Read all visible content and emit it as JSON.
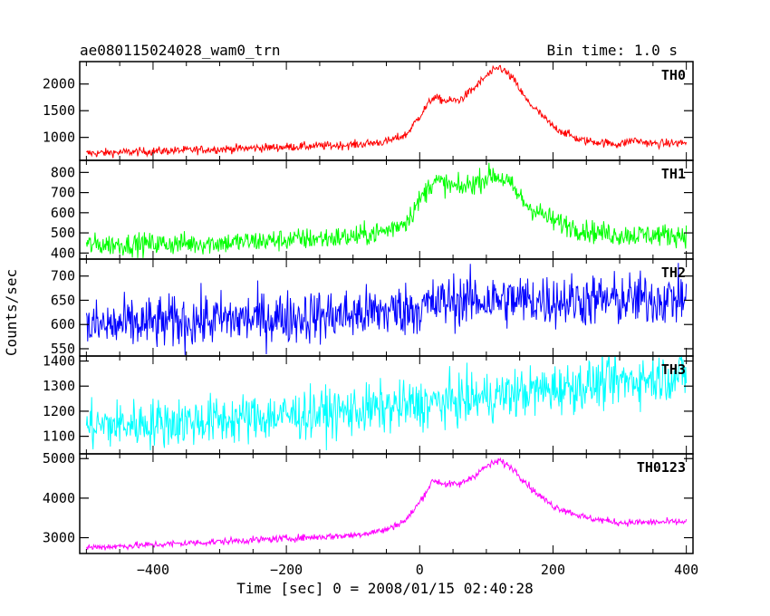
{
  "header": {
    "title": "ae080115024028_wam0_trn",
    "bin_time": "Bin time: 1.0 s"
  },
  "chart_data": {
    "type": "line",
    "ylabel": "Counts/sec",
    "xlabel": "Time [sec] 0 = 2008/01/15 02:40:28",
    "xlim": [
      -510,
      410
    ],
    "x_ticks": [
      -400,
      -200,
      0,
      200,
      400
    ],
    "x_tick_labels": [
      "−400",
      "−200",
      "0",
      "200",
      "400"
    ],
    "grid": false,
    "series": [
      {
        "name": "TH0",
        "color": "#ff0000",
        "ylim": [
          570,
          2420
        ],
        "y_ticks": [
          1000,
          1500,
          2000
        ],
        "noise": 40,
        "points": [
          [
            -500,
            700
          ],
          [
            -400,
            740
          ],
          [
            -300,
            780
          ],
          [
            -200,
            820
          ],
          [
            -100,
            860
          ],
          [
            -50,
            920
          ],
          [
            -20,
            1050
          ],
          [
            0,
            1400
          ],
          [
            20,
            1750
          ],
          [
            40,
            1680
          ],
          [
            60,
            1700
          ],
          [
            80,
            1900
          ],
          [
            100,
            2150
          ],
          [
            120,
            2320
          ],
          [
            140,
            2100
          ],
          [
            160,
            1700
          ],
          [
            200,
            1200
          ],
          [
            240,
            950
          ],
          [
            300,
            870
          ],
          [
            320,
            950
          ],
          [
            350,
            880
          ],
          [
            400,
            900
          ]
        ]
      },
      {
        "name": "TH1",
        "color": "#00ff00",
        "ylim": [
          370,
          860
        ],
        "y_ticks": [
          400,
          500,
          600,
          700,
          800
        ],
        "noise": 28,
        "points": [
          [
            -500,
            440
          ],
          [
            -300,
            450
          ],
          [
            -200,
            465
          ],
          [
            -100,
            480
          ],
          [
            -50,
            510
          ],
          [
            -20,
            560
          ],
          [
            0,
            660
          ],
          [
            20,
            760
          ],
          [
            40,
            740
          ],
          [
            60,
            720
          ],
          [
            90,
            760
          ],
          [
            110,
            790
          ],
          [
            130,
            760
          ],
          [
            160,
            640
          ],
          [
            200,
            560
          ],
          [
            250,
            510
          ],
          [
            300,
            490
          ],
          [
            400,
            490
          ]
        ]
      },
      {
        "name": "TH2",
        "color": "#0000ff",
        "ylim": [
          535,
          735
        ],
        "y_ticks": [
          550,
          600,
          650,
          700
        ],
        "noise": 28,
        "points": [
          [
            -500,
            595
          ],
          [
            -300,
            610
          ],
          [
            -100,
            620
          ],
          [
            0,
            635
          ],
          [
            50,
            650
          ],
          [
            100,
            650
          ],
          [
            200,
            650
          ],
          [
            300,
            650
          ],
          [
            400,
            655
          ]
        ]
      },
      {
        "name": "TH3",
        "color": "#00ffff",
        "ylim": [
          1030,
          1420
        ],
        "y_ticks": [
          1100,
          1200,
          1300,
          1400
        ],
        "noise": 50,
        "points": [
          [
            -500,
            1140
          ],
          [
            -300,
            1165
          ],
          [
            -100,
            1200
          ],
          [
            0,
            1225
          ],
          [
            100,
            1255
          ],
          [
            200,
            1290
          ],
          [
            300,
            1320
          ],
          [
            400,
            1345
          ]
        ]
      },
      {
        "name": "TH0123",
        "color": "#ff00ff",
        "ylim": [
          2600,
          5120
        ],
        "y_ticks": [
          3000,
          4000,
          5000
        ],
        "noise": 45,
        "points": [
          [
            -500,
            2750
          ],
          [
            -400,
            2820
          ],
          [
            -300,
            2900
          ],
          [
            -200,
            2980
          ],
          [
            -100,
            3060
          ],
          [
            -50,
            3200
          ],
          [
            -20,
            3450
          ],
          [
            0,
            3900
          ],
          [
            20,
            4450
          ],
          [
            40,
            4350
          ],
          [
            60,
            4350
          ],
          [
            80,
            4550
          ],
          [
            100,
            4800
          ],
          [
            120,
            4950
          ],
          [
            140,
            4750
          ],
          [
            170,
            4200
          ],
          [
            200,
            3800
          ],
          [
            250,
            3500
          ],
          [
            300,
            3380
          ],
          [
            400,
            3400
          ]
        ]
      }
    ]
  }
}
